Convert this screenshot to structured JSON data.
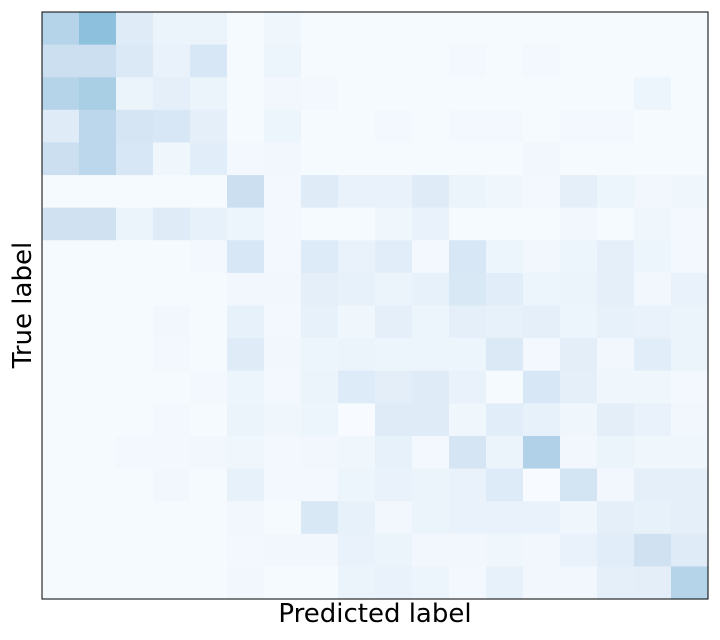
{
  "chart_data": {
    "type": "heatmap",
    "xlabel": "Predicted label",
    "ylabel": "True label",
    "rows": 18,
    "cols": 18,
    "show_ticks": false,
    "show_grid": false,
    "colormap": "Blues",
    "value_range": [
      0,
      1
    ],
    "values": [
      [
        0.3,
        0.42,
        0.12,
        0.06,
        0.06,
        0.01,
        0.04,
        0.01,
        0.01,
        0.01,
        0.01,
        0.01,
        0.01,
        0.01,
        0.01,
        0.01,
        0.01,
        0.01
      ],
      [
        0.22,
        0.22,
        0.14,
        0.07,
        0.16,
        0.01,
        0.05,
        0.01,
        0.01,
        0.01,
        0.01,
        0.02,
        0.01,
        0.02,
        0.01,
        0.01,
        0.01,
        0.01
      ],
      [
        0.3,
        0.34,
        0.06,
        0.09,
        0.06,
        0.01,
        0.03,
        0.02,
        0.01,
        0.01,
        0.01,
        0.01,
        0.01,
        0.01,
        0.01,
        0.01,
        0.05,
        0.01
      ],
      [
        0.12,
        0.28,
        0.17,
        0.16,
        0.09,
        0.01,
        0.05,
        0.01,
        0.01,
        0.02,
        0.01,
        0.02,
        0.02,
        0.01,
        0.02,
        0.02,
        0.01,
        0.01
      ],
      [
        0.22,
        0.28,
        0.16,
        0.04,
        0.11,
        0.02,
        0.03,
        0.01,
        0.01,
        0.01,
        0.01,
        0.01,
        0.01,
        0.03,
        0.01,
        0.01,
        0.01,
        0.01
      ],
      [
        0.01,
        0.01,
        0.01,
        0.01,
        0.01,
        0.22,
        0.02,
        0.12,
        0.07,
        0.07,
        0.12,
        0.06,
        0.04,
        0.02,
        0.09,
        0.05,
        0.03,
        0.04
      ],
      [
        0.2,
        0.2,
        0.06,
        0.12,
        0.08,
        0.05,
        0.02,
        0.01,
        0.01,
        0.04,
        0.07,
        0.01,
        0.01,
        0.01,
        0.03,
        0.01,
        0.04,
        0.02
      ],
      [
        0.01,
        0.01,
        0.01,
        0.01,
        0.02,
        0.16,
        0.02,
        0.13,
        0.07,
        0.11,
        0.02,
        0.16,
        0.05,
        0.03,
        0.05,
        0.09,
        0.05,
        0.02
      ],
      [
        0.01,
        0.01,
        0.01,
        0.01,
        0.01,
        0.03,
        0.03,
        0.09,
        0.08,
        0.06,
        0.08,
        0.15,
        0.11,
        0.05,
        0.06,
        0.09,
        0.03,
        0.07
      ],
      [
        0.01,
        0.01,
        0.01,
        0.03,
        0.01,
        0.08,
        0.02,
        0.08,
        0.04,
        0.09,
        0.05,
        0.09,
        0.08,
        0.09,
        0.05,
        0.08,
        0.07,
        0.06
      ],
      [
        0.01,
        0.01,
        0.01,
        0.02,
        0.01,
        0.12,
        0.03,
        0.05,
        0.06,
        0.05,
        0.05,
        0.05,
        0.14,
        0.02,
        0.1,
        0.03,
        0.11,
        0.06
      ],
      [
        0.01,
        0.01,
        0.01,
        0.01,
        0.02,
        0.05,
        0.02,
        0.06,
        0.13,
        0.1,
        0.12,
        0.07,
        0.01,
        0.16,
        0.09,
        0.04,
        0.04,
        0.02
      ],
      [
        0.01,
        0.01,
        0.01,
        0.02,
        0.01,
        0.06,
        0.04,
        0.05,
        0.0,
        0.12,
        0.12,
        0.04,
        0.11,
        0.08,
        0.04,
        0.1,
        0.07,
        0.03
      ],
      [
        0.01,
        0.01,
        0.02,
        0.02,
        0.03,
        0.04,
        0.02,
        0.03,
        0.04,
        0.08,
        0.02,
        0.17,
        0.06,
        0.32,
        0.03,
        0.06,
        0.04,
        0.04
      ],
      [
        0.01,
        0.01,
        0.01,
        0.03,
        0.01,
        0.08,
        0.02,
        0.02,
        0.05,
        0.07,
        0.06,
        0.07,
        0.13,
        0.0,
        0.18,
        0.03,
        0.09,
        0.09
      ],
      [
        0.01,
        0.01,
        0.01,
        0.01,
        0.01,
        0.03,
        0.01,
        0.15,
        0.08,
        0.03,
        0.06,
        0.07,
        0.07,
        0.07,
        0.04,
        0.09,
        0.08,
        0.09
      ],
      [
        0.01,
        0.01,
        0.01,
        0.01,
        0.01,
        0.02,
        0.03,
        0.03,
        0.07,
        0.06,
        0.03,
        0.03,
        0.04,
        0.03,
        0.07,
        0.11,
        0.2,
        0.12
      ],
      [
        0.01,
        0.01,
        0.01,
        0.01,
        0.01,
        0.03,
        0.01,
        0.01,
        0.06,
        0.07,
        0.05,
        0.02,
        0.08,
        0.03,
        0.03,
        0.09,
        0.1,
        0.3
      ]
    ]
  }
}
